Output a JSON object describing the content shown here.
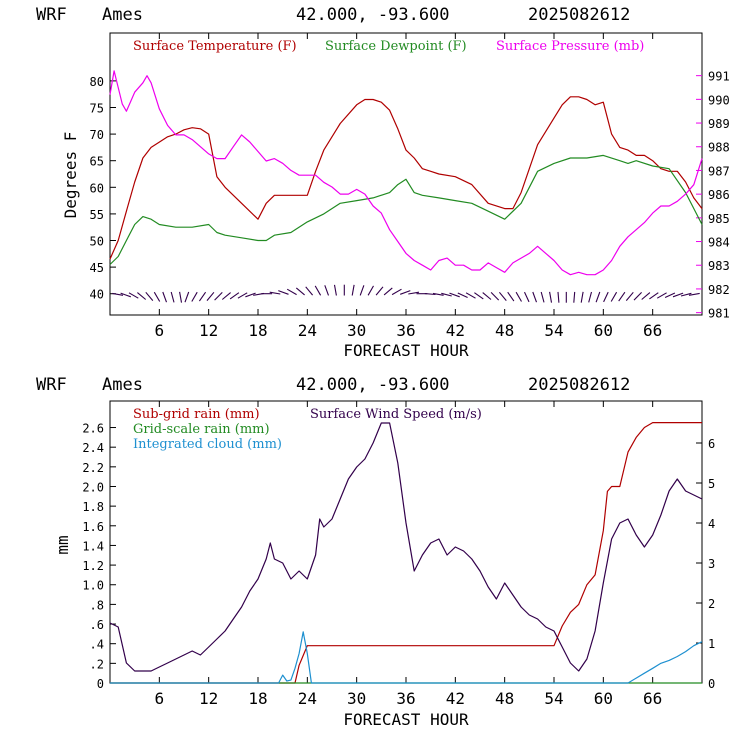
{
  "colors": {
    "temperature": "#b00000",
    "dewpoint": "#228b22",
    "pressure": "#ee00ee",
    "wind": "#32004b",
    "subgrid_rain": "#b00000",
    "gridscale_rain": "#228b22",
    "cloud": "#1e90d0"
  },
  "chart_data": [
    {
      "type": "line",
      "header": {
        "model": "WRF",
        "station": "Ames",
        "location": "42.000, -93.600",
        "run": "2025082612"
      },
      "xlabel": "FORECAST HOUR",
      "ylabel": "Degrees F",
      "xlim": [
        0,
        72
      ],
      "ylim": [
        36,
        89
      ],
      "y2lim": [
        980.9,
        992.8
      ],
      "xticks": [
        "6",
        "12",
        "18",
        "24",
        "30",
        "36",
        "42",
        "48",
        "54",
        "60",
        "66"
      ],
      "yticks": [
        "40",
        "45",
        "50",
        "55",
        "60",
        "65",
        "70",
        "75",
        "80"
      ],
      "y2ticks": [
        "981",
        "982",
        "983",
        "984",
        "985",
        "986",
        "987",
        "988",
        "989",
        "990",
        "991"
      ],
      "legend": [
        {
          "label": "Surface Temperature (F)",
          "color_key": "temperature"
        },
        {
          "label": "Surface Dewpoint (F)",
          "color_key": "dewpoint"
        },
        {
          "label": "Surface Pressure (mb)",
          "color_key": "pressure"
        }
      ],
      "series": [
        {
          "name": "Surface Temperature (F)",
          "axis": "left",
          "color_key": "temperature",
          "x": [
            0,
            1,
            2,
            3,
            4,
            5,
            6,
            7,
            8,
            9,
            10,
            11,
            12,
            13,
            14,
            16,
            18,
            19,
            20,
            21,
            22,
            23,
            24,
            25,
            26,
            28,
            30,
            31,
            32,
            33,
            34,
            35,
            36,
            37,
            38,
            39,
            40,
            42,
            44,
            46,
            48,
            49,
            50,
            52,
            54,
            55,
            56,
            57,
            58,
            59,
            60,
            61,
            62,
            63,
            64,
            65,
            66,
            67,
            68,
            69,
            70,
            71,
            72
          ],
          "y": [
            46.5,
            50,
            55.5,
            61,
            65.5,
            67.5,
            68.5,
            69.5,
            70,
            70.8,
            71.2,
            71,
            70,
            62,
            60,
            57,
            54,
            57,
            58.5,
            58.5,
            58.5,
            58.5,
            58.5,
            63,
            67,
            72,
            75.5,
            76.5,
            76.5,
            76,
            74.5,
            71,
            67,
            65.5,
            63.5,
            63,
            62.5,
            62,
            60.5,
            57,
            56,
            56,
            59,
            68,
            73,
            75.5,
            77,
            77,
            76.5,
            75.5,
            76,
            70,
            67.5,
            67,
            66,
            66,
            65,
            63.5,
            63,
            63,
            61,
            58,
            56
          ]
        },
        {
          "name": "Surface Dewpoint (F)",
          "axis": "left",
          "color_key": "dewpoint",
          "x": [
            0,
            1,
            2,
            3,
            4,
            5,
            6,
            8,
            10,
            12,
            13,
            14,
            16,
            18,
            19,
            20,
            22,
            24,
            26,
            28,
            30,
            32,
            34,
            35,
            36,
            37,
            38,
            40,
            42,
            44,
            46,
            48,
            50,
            52,
            54,
            56,
            58,
            60,
            62,
            63,
            64,
            66,
            68,
            70,
            72
          ],
          "y": [
            45.5,
            47,
            50,
            53,
            54.5,
            54,
            53,
            52.5,
            52.5,
            53,
            51.5,
            51,
            50.5,
            50,
            50,
            51,
            51.5,
            53.5,
            55,
            57,
            57.5,
            58,
            59,
            60.5,
            61.5,
            59,
            58.5,
            58,
            57.5,
            57,
            55.5,
            54,
            57,
            63,
            64.5,
            65.5,
            65.5,
            66,
            65,
            64.5,
            65,
            64,
            63.5,
            59,
            53
          ]
        },
        {
          "name": "Surface Pressure (mb)",
          "axis": "right",
          "color_key": "pressure",
          "x": [
            0,
            0.5,
            1,
            1.5,
            2,
            3,
            4,
            4.5,
            5,
            6,
            7,
            8,
            9,
            10,
            11,
            12,
            13,
            14,
            15,
            16,
            17,
            18,
            19,
            20,
            21,
            22,
            23,
            24,
            25,
            26,
            27,
            28,
            29,
            30,
            31,
            32,
            33,
            34,
            35,
            36,
            37,
            38,
            39,
            40,
            41,
            42,
            43,
            44,
            45,
            46,
            47,
            48,
            49,
            50,
            51,
            52,
            53,
            54,
            55,
            56,
            57,
            58,
            59,
            60,
            61,
            62,
            63,
            64,
            65,
            66,
            67,
            68,
            69,
            70,
            71,
            72
          ],
          "y": [
            990.2,
            991.2,
            990.5,
            989.8,
            989.5,
            990.3,
            990.7,
            991,
            990.7,
            989.6,
            988.9,
            988.5,
            988.5,
            988.3,
            988,
            987.7,
            987.5,
            987.5,
            988,
            988.5,
            988.2,
            987.8,
            987.4,
            987.5,
            987.3,
            987,
            986.8,
            986.8,
            986.8,
            986.5,
            986.3,
            986,
            986,
            986.2,
            986,
            985.5,
            985.2,
            984.5,
            984,
            983.5,
            983.2,
            983,
            982.8,
            983.2,
            983.3,
            983,
            983,
            982.8,
            982.8,
            983.1,
            982.9,
            982.7,
            983.1,
            983.3,
            983.5,
            983.8,
            983.5,
            983.2,
            982.8,
            982.6,
            982.7,
            982.6,
            982.6,
            982.8,
            983.2,
            983.8,
            984.2,
            984.5,
            984.8,
            985.2,
            985.5,
            985.5,
            985.7,
            986,
            986.4,
            987.5
          ]
        },
        {
          "name": "Wind barbs",
          "axis": "left",
          "color_key": "wind",
          "x": [
            0,
            1,
            2,
            3,
            4,
            5,
            6,
            7,
            8,
            9,
            10,
            11,
            12,
            13,
            14,
            15,
            16,
            17,
            18,
            19,
            20,
            21,
            22,
            23,
            24,
            25,
            26,
            27,
            28,
            29,
            30,
            31,
            32,
            33,
            34,
            35,
            36,
            37,
            38,
            39,
            40,
            41,
            42,
            43,
            44,
            45,
            46,
            47,
            48,
            49,
            50,
            51,
            52,
            53,
            54,
            55,
            56,
            57,
            58,
            59,
            60,
            61,
            62,
            63,
            64,
            65,
            66,
            67,
            68,
            69,
            70,
            71
          ],
          "y": [
            40,
            40,
            40,
            40,
            40,
            40,
            40,
            40,
            40,
            40,
            40,
            40,
            40,
            40,
            40,
            40,
            40,
            40,
            40,
            40,
            40,
            40,
            40,
            40,
            40,
            40,
            40,
            40,
            40,
            40,
            40,
            40,
            40,
            40,
            40,
            40,
            40,
            40,
            40,
            40,
            40,
            40,
            40,
            40,
            40,
            40,
            40,
            40,
            40,
            40,
            40,
            40,
            40,
            40,
            40,
            40,
            40,
            40,
            40,
            40,
            40,
            40,
            40,
            40,
            40,
            40,
            40,
            40,
            40,
            40,
            40,
            40
          ],
          "direction_deg": [
            280,
            290,
            300,
            310,
            320,
            330,
            340,
            345,
            350,
            20,
            30,
            35,
            40,
            45,
            50,
            55,
            60,
            70,
            80,
            90,
            100,
            110,
            120,
            130,
            140,
            150,
            160,
            170,
            180,
            190,
            200,
            210,
            220,
            230,
            240,
            250,
            260,
            270,
            275,
            280,
            285,
            290,
            295,
            300,
            305,
            310,
            315,
            320,
            325,
            330,
            335,
            340,
            345,
            350,
            355,
            0,
            5,
            10,
            15,
            20,
            25,
            30,
            35,
            40,
            45,
            50,
            55,
            60,
            65,
            70,
            75,
            80
          ]
        }
      ]
    },
    {
      "type": "line",
      "header": {
        "model": "WRF",
        "station": "Ames",
        "location": "42.000, -93.600",
        "run": "2025082612"
      },
      "xlabel": "FORECAST HOUR",
      "ylabel": "mm",
      "xlim": [
        0,
        72
      ],
      "ylim": [
        0,
        2.87
      ],
      "y2lim": [
        0,
        7.05
      ],
      "xticks": [
        "6",
        "12",
        "18",
        "24",
        "30",
        "36",
        "42",
        "48",
        "54",
        "60",
        "66"
      ],
      "yticks": [
        "0",
        ".2",
        ".4",
        ".6",
        ".8",
        "1.0",
        "1.2",
        "1.4",
        "1.6",
        "1.8",
        "2.0",
        "2.2",
        "2.4",
        "2.6"
      ],
      "y2ticks": [
        "0",
        "1",
        "2",
        "3",
        "4",
        "5",
        "6"
      ],
      "legend": [
        {
          "label": "Sub-grid rain (mm)",
          "color_key": "subgrid_rain"
        },
        {
          "label": "Surface Wind Speed (m/s)",
          "color_key": "wind"
        },
        {
          "label": "Grid-scale rain (mm)",
          "color_key": "gridscale_rain"
        },
        {
          "label": "Integrated cloud (mm)",
          "color_key": "cloud"
        }
      ],
      "series": [
        {
          "name": "Sub-grid rain (mm)",
          "axis": "left",
          "color_key": "subgrid_rain",
          "x": [
            0,
            22.5,
            23,
            23.5,
            24,
            54,
            54.5,
            55,
            56,
            57,
            58,
            59,
            60,
            60.5,
            61,
            62,
            63,
            64,
            65,
            66,
            72
          ],
          "y": [
            0,
            0,
            0.18,
            0.28,
            0.38,
            0.38,
            0.48,
            0.58,
            0.72,
            0.8,
            1.0,
            1.1,
            1.55,
            1.95,
            2.0,
            2.0,
            2.35,
            2.5,
            2.6,
            2.65,
            2.65
          ]
        },
        {
          "name": "Grid-scale rain (mm)",
          "axis": "left",
          "color_key": "gridscale_rain",
          "x": [
            0,
            72
          ],
          "y": [
            0,
            0
          ]
        },
        {
          "name": "Integrated cloud (mm)",
          "axis": "left",
          "color_key": "cloud",
          "x": [
            0,
            20.5,
            21,
            21.5,
            22,
            22.5,
            23,
            23.5,
            24,
            24.5,
            63,
            64,
            65,
            66,
            67,
            68,
            69,
            70,
            71,
            72
          ],
          "y": [
            0,
            0,
            0.08,
            0.02,
            0.03,
            0.15,
            0.3,
            0.52,
            0.3,
            0,
            0,
            0.05,
            0.1,
            0.15,
            0.2,
            0.23,
            0.27,
            0.32,
            0.38,
            0.42
          ]
        },
        {
          "name": "Surface Wind Speed (m/s)",
          "axis": "right",
          "color_key": "wind",
          "x": [
            0,
            1,
            2,
            3,
            4,
            5,
            6,
            7,
            8,
            9,
            10,
            11,
            12,
            13,
            14,
            15,
            16,
            17,
            18,
            19,
            19.5,
            20,
            21,
            22,
            23,
            24,
            25,
            25.5,
            26,
            27,
            28,
            29,
            30,
            31,
            32,
            33,
            34,
            35,
            36,
            37,
            38,
            39,
            40,
            41,
            42,
            43,
            44,
            45,
            46,
            47,
            48,
            49,
            50,
            51,
            52,
            53,
            54,
            55,
            56,
            57,
            58,
            59,
            60,
            61,
            62,
            63,
            64,
            65,
            66,
            67,
            68,
            69,
            70,
            71,
            72
          ],
          "y": [
            1.5,
            1.4,
            0.5,
            0.3,
            0.3,
            0.3,
            0.4,
            0.5,
            0.6,
            0.7,
            0.8,
            0.7,
            0.9,
            1.1,
            1.3,
            1.6,
            1.9,
            2.3,
            2.6,
            3.1,
            3.5,
            3.1,
            3.0,
            2.6,
            2.8,
            2.6,
            3.2,
            4.1,
            3.9,
            4.1,
            4.6,
            5.1,
            5.4,
            5.6,
            6.0,
            6.5,
            6.5,
            5.5,
            4.0,
            2.8,
            3.2,
            3.5,
            3.6,
            3.2,
            3.4,
            3.3,
            3.1,
            2.8,
            2.4,
            2.1,
            2.5,
            2.2,
            1.9,
            1.7,
            1.6,
            1.4,
            1.3,
            0.9,
            0.5,
            0.3,
            0.6,
            1.3,
            2.5,
            3.6,
            4.0,
            4.1,
            3.7,
            3.4,
            3.7,
            4.2,
            4.8,
            5.1,
            4.8,
            4.7,
            4.6
          ]
        }
      ]
    }
  ]
}
